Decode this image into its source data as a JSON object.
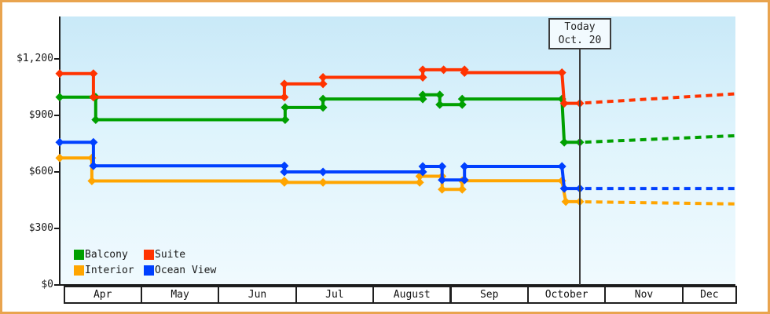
{
  "today_marker": {
    "line1": "Today",
    "line2": "Oct. 20",
    "month_x": 6.682
  },
  "y_axis": {
    "labels": [
      {
        "label": "$1,200",
        "value": 1200
      },
      {
        "label": "$900",
        "value": 900
      },
      {
        "label": "$600",
        "value": 600
      },
      {
        "label": "$300",
        "value": 300
      },
      {
        "label": "$0",
        "value": 0
      }
    ]
  },
  "x_axis": {
    "months": [
      "Apr",
      "May",
      "Jun",
      "Jul",
      "August",
      "Sep",
      "October",
      "Nov",
      "Dec"
    ]
  },
  "legend": {
    "items": [
      {
        "label": "Balcony",
        "color": "#00A000"
      },
      {
        "label": "Suite",
        "color": "#FF3300"
      },
      {
        "label": "Interior",
        "color": "#FFA500"
      },
      {
        "label": "Ocean View",
        "color": "#0040FF"
      }
    ]
  },
  "colors": {
    "frame_border": "#E9A44E",
    "axis": "#1a1a1a",
    "today_rule": "#3c3c3c",
    "plot_bg_top": "#C9E9F8",
    "plot_bg_bottom": "#F0FAFE"
  },
  "chart_data": {
    "type": "line",
    "title": "",
    "x_unit": "months (0 = Apr 1, 1 = May 1, ... 8 = Dec 1)",
    "x_categories": [
      "Apr",
      "May",
      "Jun",
      "Jul",
      "August",
      "Sep",
      "October",
      "Nov",
      "Dec"
    ],
    "ylim": [
      0,
      1350
    ],
    "y_ticks": [
      0,
      300,
      600,
      900,
      1200
    ],
    "grid": false,
    "legend_position": "bottom-left inside plot",
    "today": {
      "label": "Today Oct. 20",
      "month_x": 6.682
    },
    "note": "solid = history Apr 1 to Oct 20, dashed = forecast to late Dec; diamond markers at each step vertex",
    "series": [
      {
        "name": "Balcony",
        "color": "#00A000",
        "solid": [
          [
            -0.046,
            995
          ],
          [
            0.42,
            995
          ],
          [
            0.42,
            875
          ],
          [
            2.87,
            875
          ],
          [
            2.87,
            940
          ],
          [
            3.36,
            940
          ],
          [
            3.36,
            985
          ],
          [
            4.65,
            985
          ],
          [
            4.65,
            1007
          ],
          [
            4.87,
            1007
          ],
          [
            4.87,
            955
          ],
          [
            5.16,
            955
          ],
          [
            5.16,
            985
          ],
          [
            6.45,
            985
          ],
          [
            6.48,
            755
          ],
          [
            6.682,
            755
          ]
        ],
        "dashed": [
          [
            6.75,
            756
          ],
          [
            8.69,
            790
          ]
        ]
      },
      {
        "name": "Interior",
        "color": "#FFA500",
        "solid": [
          [
            -0.046,
            672
          ],
          [
            0.37,
            672
          ],
          [
            0.37,
            550
          ],
          [
            2.86,
            550
          ],
          [
            2.86,
            542
          ],
          [
            3.36,
            542
          ],
          [
            4.61,
            542
          ],
          [
            4.61,
            575
          ],
          [
            4.9,
            575
          ],
          [
            4.9,
            505
          ],
          [
            5.16,
            505
          ],
          [
            5.16,
            551
          ],
          [
            6.45,
            551
          ],
          [
            6.5,
            440
          ],
          [
            6.682,
            440
          ]
        ],
        "dashed": [
          [
            6.75,
            439
          ],
          [
            8.69,
            428
          ]
        ]
      },
      {
        "name": "Suite",
        "color": "#FF3300",
        "solid": [
          [
            -0.046,
            1120
          ],
          [
            0.39,
            1120
          ],
          [
            0.39,
            995
          ],
          [
            2.86,
            995
          ],
          [
            2.86,
            1065
          ],
          [
            3.36,
            1065
          ],
          [
            3.36,
            1100
          ],
          [
            4.65,
            1100
          ],
          [
            4.65,
            1140
          ],
          [
            4.92,
            1140
          ],
          [
            5.19,
            1140
          ],
          [
            5.19,
            1125
          ],
          [
            6.45,
            1125
          ],
          [
            6.48,
            962
          ],
          [
            6.682,
            962
          ]
        ],
        "dashed": [
          [
            6.75,
            964
          ],
          [
            8.69,
            1012
          ]
        ]
      },
      {
        "name": "Ocean View",
        "color": "#0040FF",
        "solid": [
          [
            -0.046,
            755
          ],
          [
            0.39,
            755
          ],
          [
            0.39,
            630
          ],
          [
            2.86,
            630
          ],
          [
            2.86,
            598
          ],
          [
            3.36,
            598
          ],
          [
            4.65,
            598
          ],
          [
            4.65,
            627
          ],
          [
            4.9,
            627
          ],
          [
            4.9,
            555
          ],
          [
            5.19,
            555
          ],
          [
            5.19,
            627
          ],
          [
            6.45,
            627
          ],
          [
            6.48,
            510
          ],
          [
            6.682,
            510
          ]
        ],
        "dashed": [
          [
            6.75,
            510
          ],
          [
            8.69,
            510
          ]
        ]
      }
    ]
  }
}
